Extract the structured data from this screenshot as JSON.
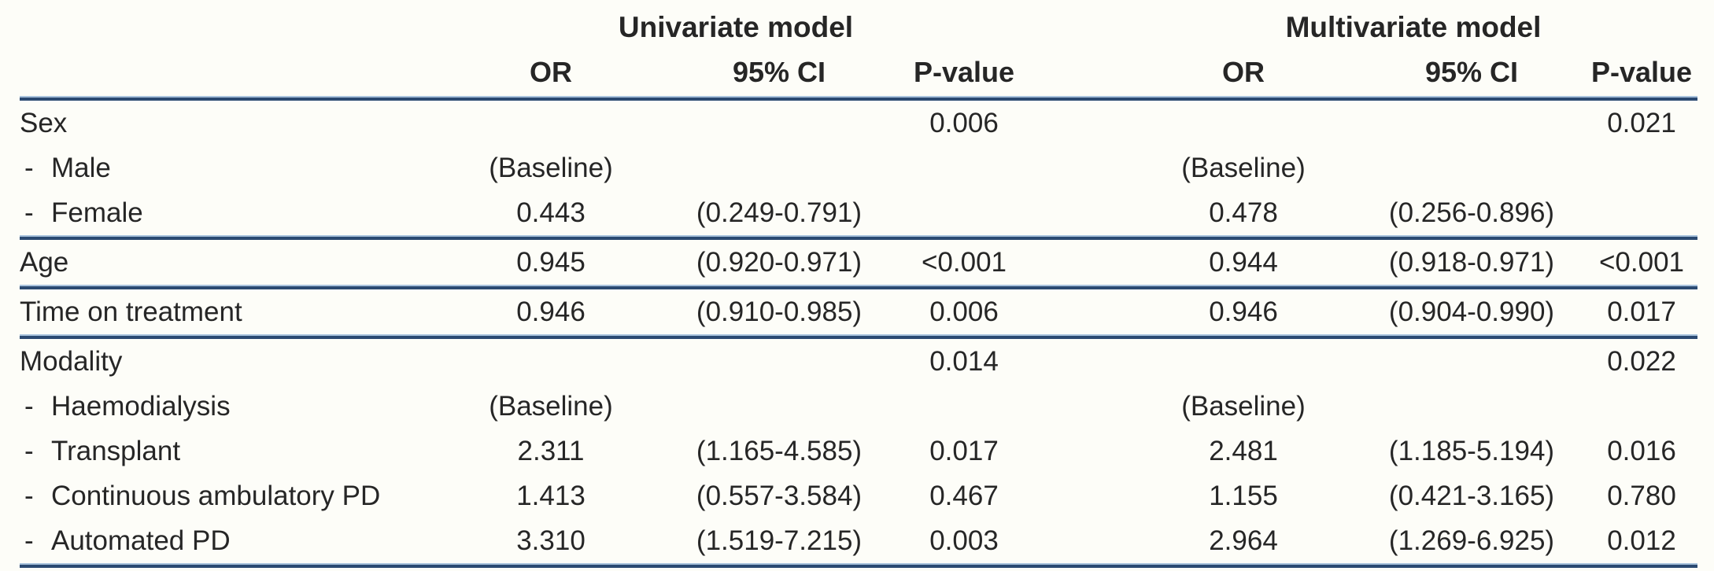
{
  "figure": {
    "description": "Logistic regression results table with univariate and multivariate models"
  },
  "table": {
    "dash": "-",
    "group_headers": {
      "univariate": "Univariate model",
      "multivariate": "Multivariate model"
    },
    "column_headers": {
      "or": "OR",
      "ci": "95% CI",
      "pvalue": "P-value"
    },
    "rows": [
      {
        "label": "Sex",
        "indent": false,
        "uni_or": "",
        "uni_ci": "",
        "uni_p": "0.006",
        "multi_or": "",
        "multi_ci": "",
        "multi_p": "0.021"
      },
      {
        "label": "Male",
        "indent": true,
        "uni_or": "(Baseline)",
        "uni_ci": "",
        "uni_p": "",
        "multi_or": "(Baseline)",
        "multi_ci": "",
        "multi_p": ""
      },
      {
        "label": "Female",
        "indent": true,
        "uni_or": "0.443",
        "uni_ci": "(0.249-0.791)",
        "uni_p": "",
        "multi_or": "0.478",
        "multi_ci": "(0.256-0.896)",
        "multi_p": ""
      },
      {
        "label": "Age",
        "indent": false,
        "uni_or": "0.945",
        "uni_ci": "(0.920-0.971)",
        "uni_p": "<0.001",
        "multi_or": "0.944",
        "multi_ci": "(0.918-0.971)",
        "multi_p": "<0.001"
      },
      {
        "label": "Time on treatment",
        "indent": false,
        "uni_or": "0.946",
        "uni_ci": "(0.910-0.985)",
        "uni_p": "0.006",
        "multi_or": "0.946",
        "multi_ci": "(0.904-0.990)",
        "multi_p": "0.017"
      },
      {
        "label": "Modality",
        "indent": false,
        "uni_or": "",
        "uni_ci": "",
        "uni_p": "0.014",
        "multi_or": "",
        "multi_ci": "",
        "multi_p": "0.022"
      },
      {
        "label": "Haemodialysis",
        "indent": true,
        "uni_or": "(Baseline)",
        "uni_ci": "",
        "uni_p": "",
        "multi_or": "(Baseline)",
        "multi_ci": "",
        "multi_p": ""
      },
      {
        "label": "Transplant",
        "indent": true,
        "uni_or": "2.311",
        "uni_ci": "(1.165-4.585)",
        "uni_p": "0.017",
        "multi_or": "2.481",
        "multi_ci": "(1.185-5.194)",
        "multi_p": "0.016"
      },
      {
        "label": "Continuous ambulatory PD",
        "indent": true,
        "uni_or": "1.413",
        "uni_ci": "(0.557-3.584)",
        "uni_p": "0.467",
        "multi_or": "1.155",
        "multi_ci": "(0.421-3.165)",
        "multi_p": "0.780"
      },
      {
        "label": "Automated PD",
        "indent": true,
        "uni_or": "3.310",
        "uni_ci": "(1.519-7.215)",
        "uni_p": "0.003",
        "multi_or": "2.964",
        "multi_ci": "(1.269-6.925)",
        "multi_p": "0.012"
      }
    ]
  },
  "colors": {
    "rule_dark": "#2b4a72",
    "rule_light": "#a9c3dd",
    "background": "#fdfdf8",
    "text": "#262626"
  }
}
